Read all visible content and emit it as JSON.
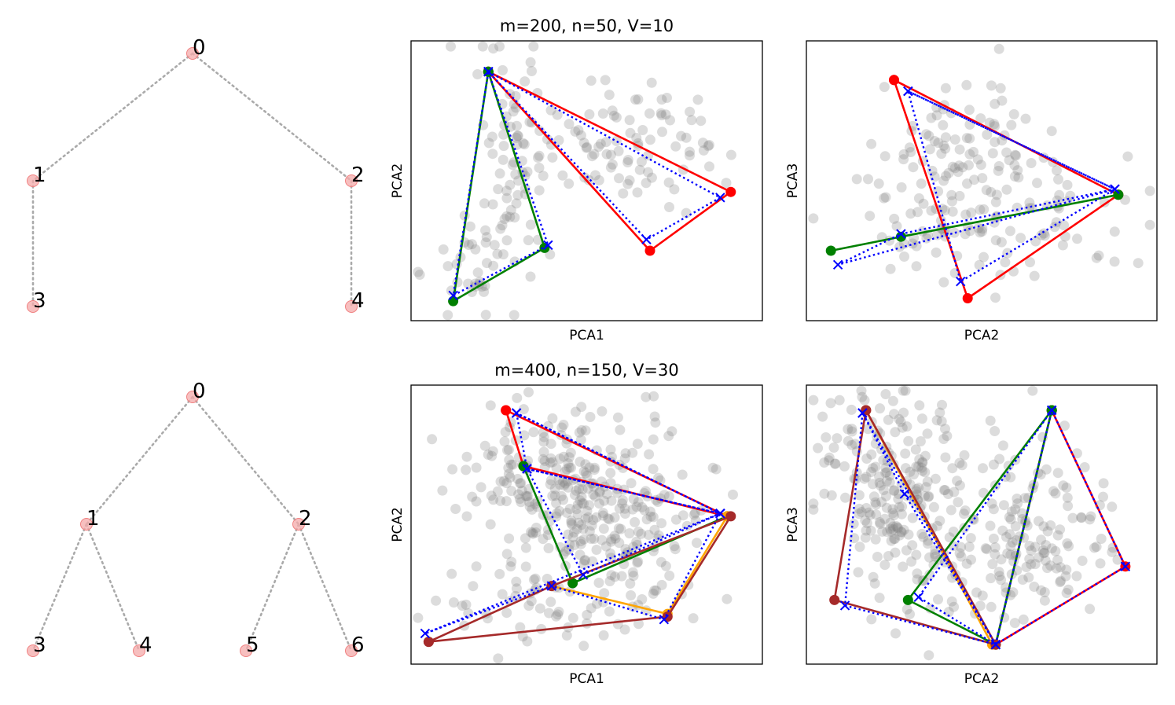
{
  "chart_data": [
    {
      "type": "tree",
      "row": 0,
      "nodes": [
        "0",
        "1",
        "2",
        "3",
        "4"
      ],
      "edges": [
        [
          "0",
          "1"
        ],
        [
          "0",
          "2"
        ],
        [
          "1",
          "3"
        ],
        [
          "2",
          "4"
        ]
      ],
      "node_color": "#f4a9a9",
      "edge_color": "#aaaaaa"
    },
    {
      "type": "scatter",
      "row": 0,
      "title": "m=200, n=50, V=10",
      "xlabel": "PCA1",
      "ylabel": "PCA2",
      "xlim": [
        0,
        100
      ],
      "ylim": [
        0,
        100
      ],
      "background_points": 200,
      "point_color": "#808080",
      "clouds": [
        {
          "cx": 28,
          "cy": 55,
          "sx": 6,
          "sy": 20,
          "n": 70
        },
        {
          "cx": 62,
          "cy": 62,
          "sx": 12,
          "sy": 12,
          "n": 90
        },
        {
          "cx": 18,
          "cy": 22,
          "sx": 6,
          "sy": 9,
          "n": 40
        }
      ],
      "paths": [
        {
          "name": "red",
          "color": "#ff0000",
          "style": "solid",
          "marker": "dot",
          "points": [
            [
              22,
              89
            ],
            [
              91,
              46
            ],
            [
              68,
              25
            ],
            [
              22,
              89
            ]
          ]
        },
        {
          "name": "green",
          "color": "#008000",
          "style": "solid",
          "marker": "dot",
          "points": [
            [
              22,
              89
            ],
            [
              38,
              26
            ],
            [
              12,
              7
            ],
            [
              22,
              89
            ]
          ]
        },
        {
          "name": "blue",
          "color": "#0000ff",
          "style": "dotted",
          "marker": "x",
          "points": [
            [
              22,
              89
            ],
            [
              88,
              44
            ],
            [
              67,
              29
            ],
            [
              22,
              89
            ],
            [
              39,
              27
            ],
            [
              12,
              9
            ],
            [
              22,
              89
            ]
          ]
        }
      ]
    },
    {
      "type": "scatter",
      "row": 0,
      "title": "",
      "xlabel": "PCA2",
      "ylabel": "PCA3",
      "xlim": [
        0,
        100
      ],
      "ylim": [
        0,
        100
      ],
      "background_points": 200,
      "point_color": "#808080",
      "clouds": [
        {
          "cx": 50,
          "cy": 36,
          "sx": 20,
          "sy": 12,
          "n": 120
        },
        {
          "cx": 46,
          "cy": 62,
          "sx": 12,
          "sy": 14,
          "n": 80
        }
      ],
      "paths": [
        {
          "name": "red",
          "color": "#ff0000",
          "style": "solid",
          "marker": "dot",
          "points": [
            [
              25,
              86
            ],
            [
              89,
              45
            ],
            [
              46,
              8
            ],
            [
              25,
              86
            ]
          ]
        },
        {
          "name": "green",
          "color": "#008000",
          "style": "solid",
          "marker": "dot",
          "points": [
            [
              89,
              45
            ],
            [
              27,
              30
            ],
            [
              7,
              25
            ]
          ]
        },
        {
          "name": "blue",
          "color": "#0000ff",
          "style": "dotted",
          "marker": "x",
          "points": [
            [
              29,
              82
            ],
            [
              88,
              47
            ],
            [
              44,
              14
            ],
            [
              29,
              82
            ],
            [
              88,
              47
            ],
            [
              27,
              31
            ],
            [
              9,
              20
            ],
            [
              88,
              47
            ]
          ]
        }
      ]
    },
    {
      "type": "tree",
      "row": 1,
      "nodes": [
        "0",
        "1",
        "2",
        "3",
        "4",
        "5",
        "6"
      ],
      "edges": [
        [
          "0",
          "1"
        ],
        [
          "0",
          "2"
        ],
        [
          "1",
          "3"
        ],
        [
          "1",
          "4"
        ],
        [
          "2",
          "5"
        ],
        [
          "2",
          "6"
        ]
      ],
      "node_color": "#f4a9a9",
      "edge_color": "#aaaaaa"
    },
    {
      "type": "scatter",
      "row": 1,
      "title": "m=400, n=150, V=30",
      "xlabel": "PCA1",
      "ylabel": "PCA2",
      "xlim": [
        0,
        100
      ],
      "ylim": [
        0,
        100
      ],
      "background_points": 400,
      "point_color": "#808080",
      "clouds": [
        {
          "cx": 55,
          "cy": 55,
          "sx": 15,
          "sy": 17,
          "n": 260
        },
        {
          "cx": 35,
          "cy": 72,
          "sx": 9,
          "sy": 10,
          "n": 90
        },
        {
          "cx": 40,
          "cy": 22,
          "sx": 18,
          "sy": 8,
          "n": 50
        }
      ],
      "paths": [
        {
          "name": "red",
          "color": "#ff0000",
          "style": "solid",
          "marker": "dot",
          "points": [
            [
              27,
              91
            ],
            [
              32,
              71
            ],
            [
              90,
              53
            ],
            [
              27,
              91
            ]
          ]
        },
        {
          "name": "green",
          "color": "#008000",
          "style": "solid",
          "marker": "dot",
          "points": [
            [
              32,
              71
            ],
            [
              46,
              29
            ],
            [
              90,
              53
            ]
          ]
        },
        {
          "name": "orange",
          "color": "#ffa500",
          "style": "solid",
          "marker": "dot",
          "points": [
            [
              40,
              28
            ],
            [
              73,
              18
            ],
            [
              90,
              53
            ]
          ]
        },
        {
          "name": "brown",
          "color": "#a52a2a",
          "style": "solid",
          "marker": "dot",
          "points": [
            [
              5,
              8
            ],
            [
              40,
              28
            ],
            [
              91,
              53
            ],
            [
              73,
              17
            ],
            [
              5,
              8
            ]
          ]
        },
        {
          "name": "blue",
          "color": "#0000ff",
          "style": "dotted",
          "marker": "x",
          "points": [
            [
              30,
              90
            ],
            [
              33,
              70
            ],
            [
              88,
              54
            ],
            [
              30,
              90
            ],
            [
              88,
              54
            ],
            [
              49,
              32
            ],
            [
              33,
              70
            ],
            [
              88,
              54
            ],
            [
              72,
              16
            ],
            [
              40,
              28
            ],
            [
              4,
              11
            ],
            [
              88,
              54
            ]
          ]
        }
      ]
    },
    {
      "type": "scatter",
      "row": 1,
      "title": "",
      "xlabel": "PCA2",
      "ylabel": "PCA3",
      "xlim": [
        0,
        100
      ],
      "ylim": [
        0,
        100
      ],
      "background_points": 400,
      "point_color": "#808080",
      "clouds": [
        {
          "cx": 30,
          "cy": 55,
          "sx": 10,
          "sy": 18,
          "n": 150
        },
        {
          "cx": 62,
          "cy": 45,
          "sx": 14,
          "sy": 16,
          "n": 170
        },
        {
          "cx": 18,
          "cy": 70,
          "sx": 8,
          "sy": 14,
          "n": 80
        }
      ],
      "paths": [
        {
          "name": "red",
          "color": "#ff0000",
          "style": "solid",
          "marker": "dot",
          "points": [
            [
              70,
              91
            ],
            [
              91,
              35
            ],
            [
              54,
              7
            ],
            [
              70,
              91
            ]
          ]
        },
        {
          "name": "green",
          "color": "#008000",
          "style": "solid",
          "marker": "dot",
          "points": [
            [
              70,
              91
            ],
            [
              29,
              23
            ],
            [
              54,
              7
            ],
            [
              70,
              91
            ]
          ]
        },
        {
          "name": "orange",
          "color": "#ffa500",
          "style": "solid",
          "marker": "dot",
          "points": [
            [
              17,
              91
            ],
            [
              53,
              7
            ]
          ]
        },
        {
          "name": "brown",
          "color": "#a52a2a",
          "style": "solid",
          "marker": "dot",
          "points": [
            [
              17,
              91
            ],
            [
              8,
              23
            ],
            [
              54,
              7
            ],
            [
              17,
              91
            ]
          ]
        },
        {
          "name": "blue",
          "color": "#0000ff",
          "style": "dotted",
          "marker": "x",
          "points": [
            [
              16,
              90
            ],
            [
              11,
              21
            ],
            [
              54,
              7
            ],
            [
              16,
              90
            ],
            [
              28,
              61
            ],
            [
              54,
              7
            ],
            [
              91,
              35
            ],
            [
              70,
              91
            ],
            [
              32,
              24
            ],
            [
              54,
              7
            ],
            [
              70,
              91
            ]
          ]
        }
      ]
    }
  ]
}
